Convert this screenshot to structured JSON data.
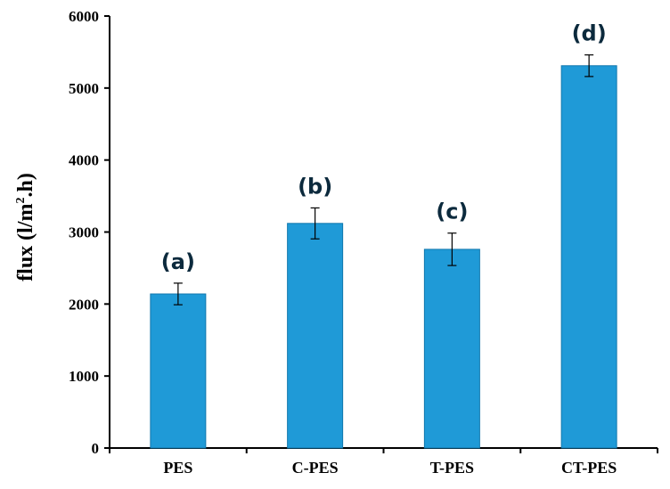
{
  "chart_data": {
    "type": "bar",
    "categories": [
      "PES",
      "C-PES",
      "T-PES",
      "CT-PES"
    ],
    "values": [
      2140,
      3120,
      2760,
      5310
    ],
    "errors": [
      150,
      215,
      225,
      150
    ],
    "annotations": [
      "(a)",
      "(b)",
      "(c)",
      "(d)"
    ],
    "ylabel_main": "flux (l/m",
    "ylabel_sup": "2",
    "ylabel_end": ".h)",
    "xlabel": "",
    "ylim": [
      0,
      6000
    ],
    "yticks": [
      "0",
      "1000",
      "2000",
      "3000",
      "4000",
      "5000",
      "6000"
    ],
    "grid": false,
    "bar_color": "#1f9ad7",
    "bar_edge_color": "#1177ad"
  }
}
